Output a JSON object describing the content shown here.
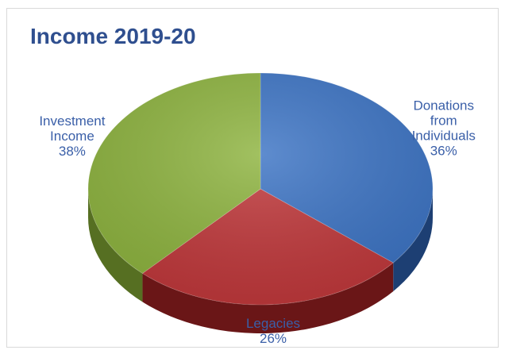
{
  "chart_data": {
    "type": "pie",
    "title": "Income 2019-20",
    "slices": [
      {
        "label_lines": [
          "Donations",
          "from",
          "Individuals"
        ],
        "value": 36,
        "value_label": "36%",
        "color": "#3b73c4",
        "side_color": "#1d3f73"
      },
      {
        "label_lines": [
          "Legacies"
        ],
        "value": 26,
        "value_label": "26%",
        "color": "#c0373a",
        "side_color": "#6a1617"
      },
      {
        "label_lines": [
          "Investment",
          "Income"
        ],
        "value": 38,
        "value_label": "38%",
        "color": "#8db33e",
        "side_color": "#566f22"
      }
    ],
    "legend": "none",
    "style": "3d-pie"
  }
}
